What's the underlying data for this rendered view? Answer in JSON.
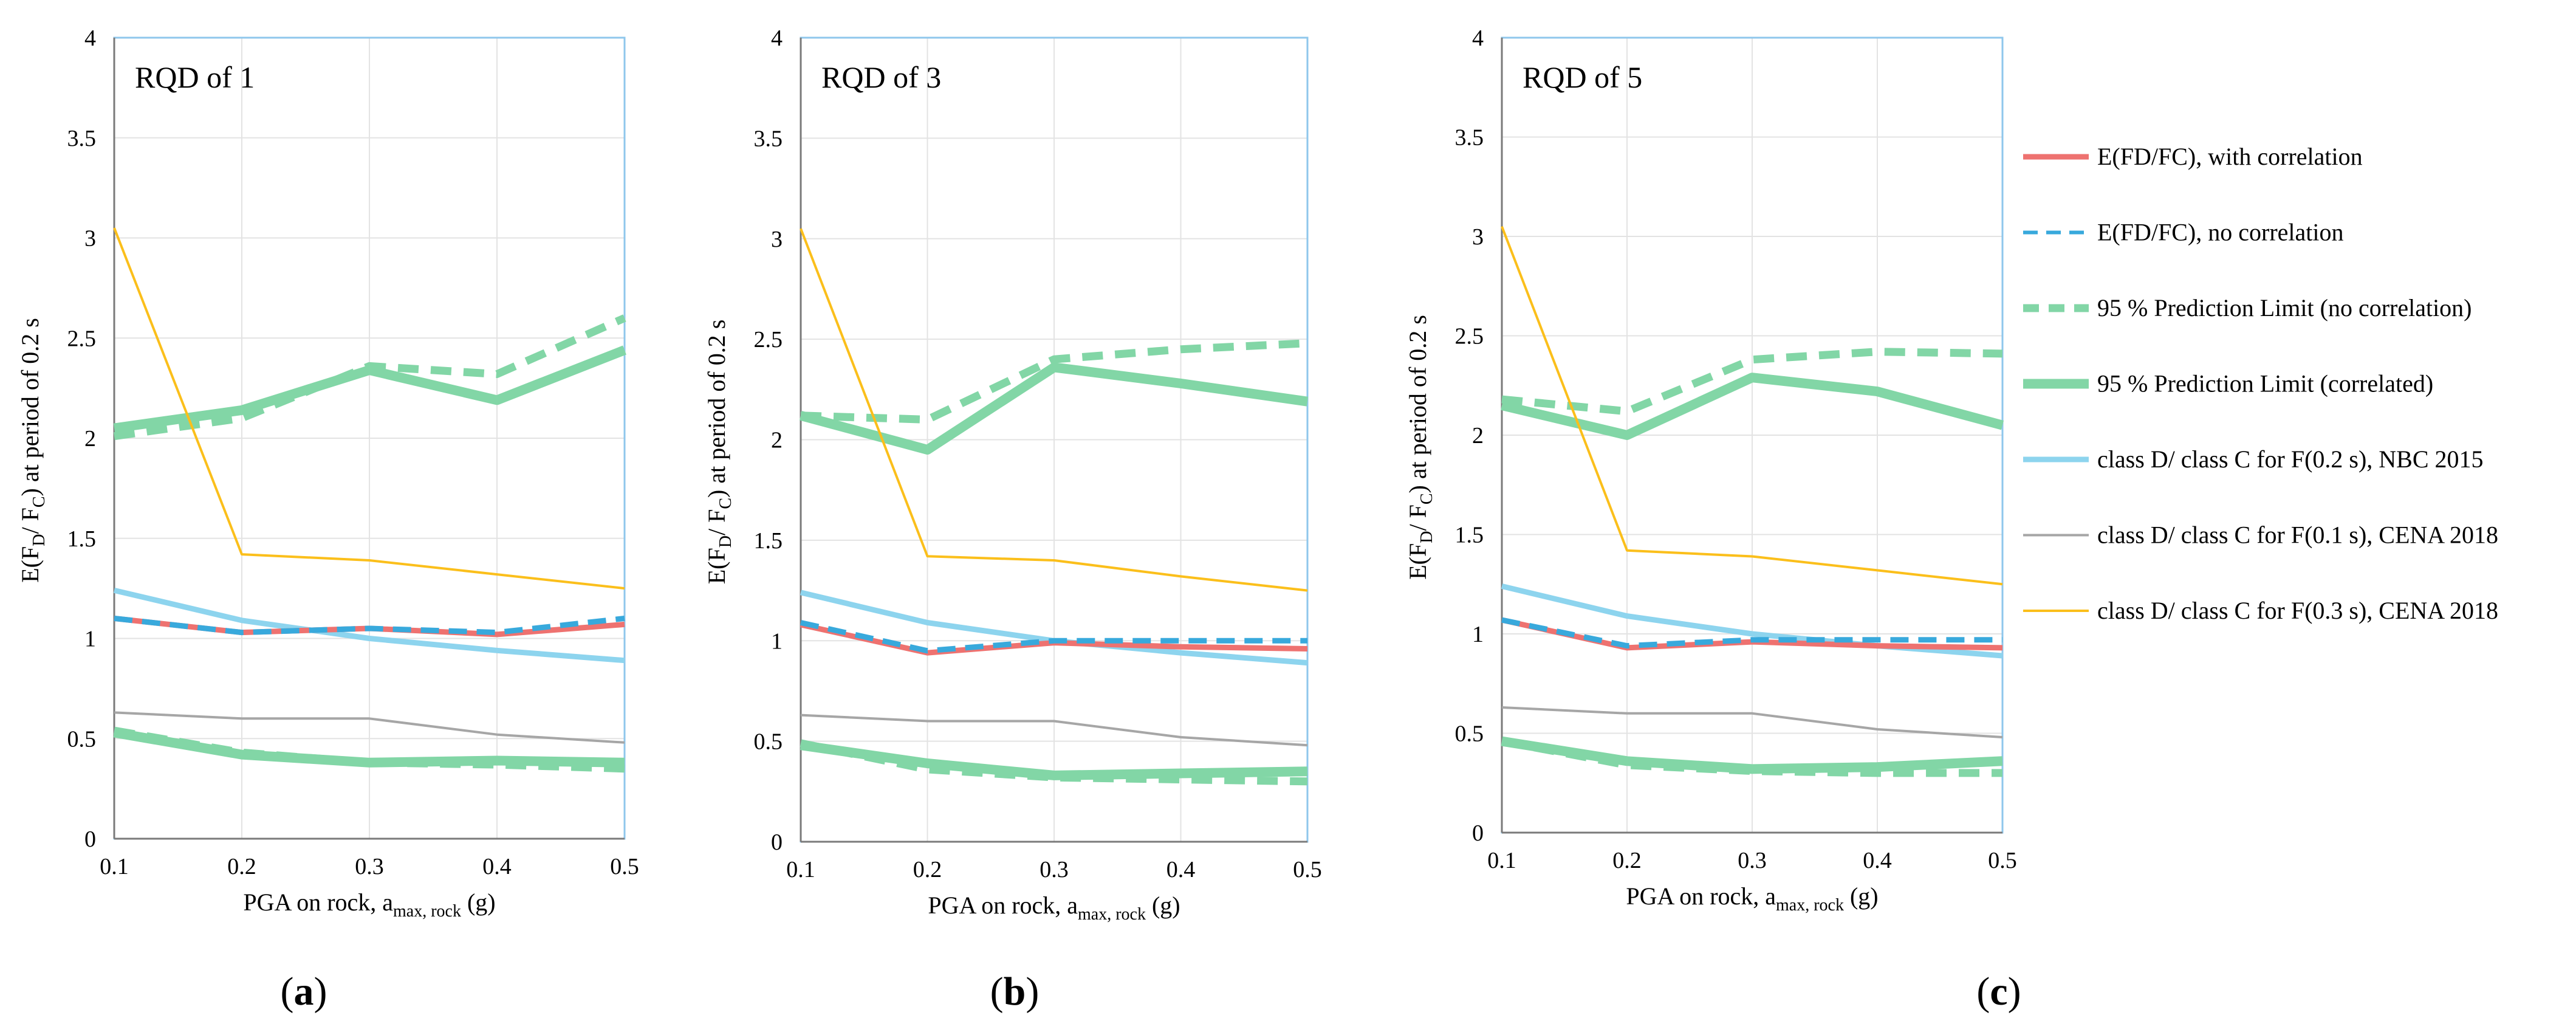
{
  "chart_data": [
    {
      "type": "line",
      "panel_letter": "a",
      "title": "RQD of 1",
      "xlabel": "PGA on rock, a",
      "xlabel_sub": "max, rock",
      "xlabel_unit": " (g)",
      "ylabel": "E(F",
      "ylabel_sub1": "D",
      "ylabel_mid": "/ F",
      "ylabel_sub2": "C",
      "ylabel_end": ") at period of 0.2 s",
      "x": [
        0.1,
        0.2,
        0.3,
        0.4,
        0.5
      ],
      "xlim": [
        0.1,
        0.5
      ],
      "ylim": [
        0,
        4
      ],
      "x_ticks": [
        "0.1",
        "0.2",
        "0.3",
        "0.4",
        "0.5"
      ],
      "y_ticks": [
        "0",
        "0.5",
        "1",
        "1.5",
        "2",
        "2.5",
        "3",
        "3.5",
        "4"
      ],
      "series": [
        {
          "key": "pl95_corr_upper",
          "values": [
            2.05,
            2.14,
            2.34,
            2.19,
            2.44
          ]
        },
        {
          "key": "pl95_nocorr_upper",
          "values": [
            2.01,
            2.1,
            2.36,
            2.32,
            2.6
          ]
        },
        {
          "key": "pl95_corr_lower",
          "values": [
            0.53,
            0.42,
            0.38,
            0.39,
            0.38
          ]
        },
        {
          "key": "pl95_nocorr_lower",
          "values": [
            0.54,
            0.43,
            0.38,
            0.37,
            0.35
          ]
        },
        {
          "key": "cena_03",
          "values": [
            3.05,
            1.42,
            1.39,
            1.32,
            1.25
          ]
        },
        {
          "key": "nbc_02",
          "values": [
            1.24,
            1.09,
            1.0,
            0.94,
            0.89
          ]
        },
        {
          "key": "cena_01",
          "values": [
            0.63,
            0.6,
            0.6,
            0.52,
            0.48
          ]
        },
        {
          "key": "with_corr",
          "values": [
            1.1,
            1.03,
            1.05,
            1.02,
            1.07
          ]
        },
        {
          "key": "no_corr",
          "values": [
            1.1,
            1.03,
            1.05,
            1.03,
            1.1
          ]
        }
      ]
    },
    {
      "type": "line",
      "panel_letter": "b",
      "title": "RQD of 3",
      "xlabel": "PGA on rock, a",
      "xlabel_sub": "max, rock",
      "xlabel_unit": " (g)",
      "ylabel": "E(F",
      "ylabel_sub1": "D",
      "ylabel_mid": "/ F",
      "ylabel_sub2": "C",
      "ylabel_end": ") at period of 0.2 s",
      "x": [
        0.1,
        0.2,
        0.3,
        0.4,
        0.5
      ],
      "xlim": [
        0.1,
        0.5
      ],
      "ylim": [
        0,
        4
      ],
      "x_ticks": [
        "0.1",
        "0.2",
        "0.3",
        "0.4",
        "0.5"
      ],
      "y_ticks": [
        "0",
        "0.5",
        "1",
        "1.5",
        "2",
        "2.5",
        "3",
        "3.5",
        "4"
      ],
      "series": [
        {
          "key": "pl95_corr_upper",
          "values": [
            2.12,
            1.95,
            2.36,
            2.28,
            2.19
          ]
        },
        {
          "key": "pl95_nocorr_upper",
          "values": [
            2.12,
            2.1,
            2.4,
            2.45,
            2.48
          ]
        },
        {
          "key": "pl95_corr_lower",
          "values": [
            0.48,
            0.39,
            0.33,
            0.34,
            0.35
          ]
        },
        {
          "key": "pl95_nocorr_lower",
          "values": [
            0.49,
            0.36,
            0.32,
            0.31,
            0.3
          ]
        },
        {
          "key": "cena_03",
          "values": [
            3.05,
            1.42,
            1.4,
            1.32,
            1.25
          ]
        },
        {
          "key": "nbc_02",
          "values": [
            1.24,
            1.09,
            1.0,
            0.94,
            0.89
          ]
        },
        {
          "key": "cena_01",
          "values": [
            0.63,
            0.6,
            0.6,
            0.52,
            0.48
          ]
        },
        {
          "key": "with_corr",
          "values": [
            1.08,
            0.94,
            0.99,
            0.97,
            0.96
          ]
        },
        {
          "key": "no_corr",
          "values": [
            1.09,
            0.95,
            1.0,
            1.0,
            1.0
          ]
        }
      ]
    },
    {
      "type": "line",
      "panel_letter": "c",
      "title": "RQD of 5",
      "xlabel": "PGA on rock, a",
      "xlabel_sub": "max, rock",
      "xlabel_unit": " (g)",
      "ylabel": "E(F",
      "ylabel_sub1": "D",
      "ylabel_mid": "/ F",
      "ylabel_sub2": "C",
      "ylabel_end": ") at period of 0.2 s",
      "x": [
        0.1,
        0.2,
        0.3,
        0.4,
        0.5
      ],
      "xlim": [
        0.1,
        0.5
      ],
      "ylim": [
        0,
        4
      ],
      "x_ticks": [
        "0.1",
        "0.2",
        "0.3",
        "0.4",
        "0.5"
      ],
      "y_ticks": [
        "0",
        "0.5",
        "1",
        "1.5",
        "2",
        "2.5",
        "3",
        "3.5",
        "4"
      ],
      "series": [
        {
          "key": "pl95_corr_upper",
          "values": [
            2.15,
            2.0,
            2.29,
            2.22,
            2.05
          ]
        },
        {
          "key": "pl95_nocorr_upper",
          "values": [
            2.18,
            2.12,
            2.38,
            2.42,
            2.41
          ]
        },
        {
          "key": "pl95_corr_lower",
          "values": [
            0.46,
            0.36,
            0.32,
            0.33,
            0.36
          ]
        },
        {
          "key": "pl95_nocorr_lower",
          "values": [
            0.46,
            0.34,
            0.31,
            0.3,
            0.3
          ]
        },
        {
          "key": "cena_03",
          "values": [
            3.05,
            1.42,
            1.39,
            1.32,
            1.25
          ]
        },
        {
          "key": "nbc_02",
          "values": [
            1.24,
            1.09,
            1.0,
            0.94,
            0.89
          ]
        },
        {
          "key": "cena_01",
          "values": [
            0.63,
            0.6,
            0.6,
            0.52,
            0.48
          ]
        },
        {
          "key": "with_corr",
          "values": [
            1.07,
            0.93,
            0.96,
            0.94,
            0.93
          ]
        },
        {
          "key": "no_corr",
          "values": [
            1.07,
            0.94,
            0.97,
            0.97,
            0.97
          ]
        }
      ]
    }
  ],
  "legend": [
    {
      "key": "with_corr",
      "label": "E(FD/FC), with correlation"
    },
    {
      "key": "no_corr",
      "label": "E(FD/FC), no correlation"
    },
    {
      "key": "pl95_nocorr",
      "label": "95 % Prediction Limit (no correlation)"
    },
    {
      "key": "pl95_corr",
      "label": "95 % Prediction Limit (correlated)"
    },
    {
      "key": "nbc_02",
      "label": "class D/ class C for F(0.2 s), NBC 2015"
    },
    {
      "key": "cena_01",
      "label": "class D/ class C for F(0.1 s), CENA 2018"
    },
    {
      "key": "cena_03",
      "label": "class D/ class C for F(0.3 s), CENA 2018"
    }
  ],
  "colors": {
    "red": "#ee7270",
    "blue_dashed": "#38a9dc",
    "green": "#82d6a6",
    "light_blue": "#8dd4ee",
    "gray": "#a6a6a6",
    "yellow": "#fbbf1b",
    "grid": "#e3e3e3",
    "frame": "#8fc7ec"
  }
}
